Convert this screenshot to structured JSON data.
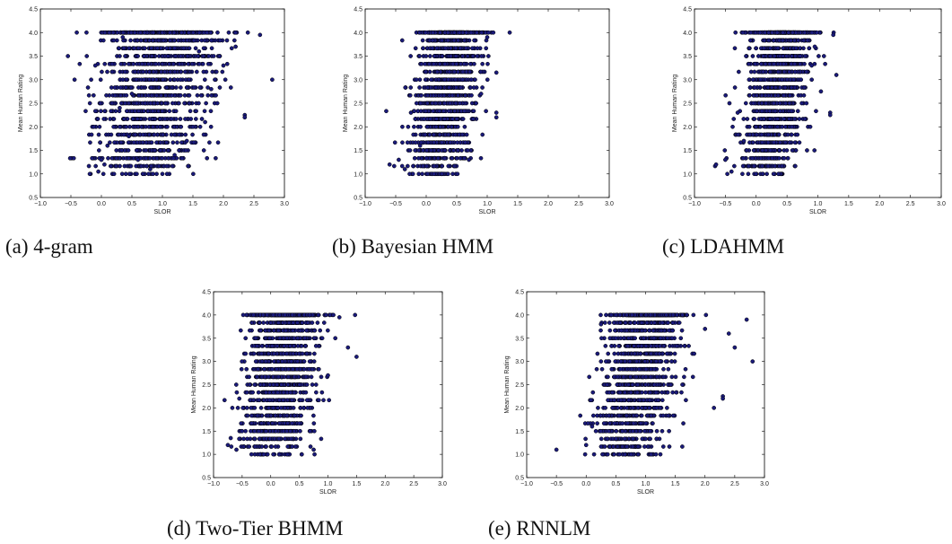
{
  "figure": {
    "panels": [
      {
        "id": "a",
        "caption": "(a) 4-gram"
      },
      {
        "id": "b",
        "caption": "(b)  Bayesian HMM"
      },
      {
        "id": "c",
        "caption": "(c) LDAHMM"
      },
      {
        "id": "d",
        "caption": "(d) Two-Tier BHMM"
      },
      {
        "id": "e",
        "caption": "(e) RNNLM"
      }
    ]
  },
  "chart_data": [
    {
      "type": "scatter",
      "id": "a",
      "xlabel": "SLOR",
      "ylabel": "Mean Human Rating",
      "xlim": [
        -1.0,
        3.0
      ],
      "ylim": [
        0.5,
        4.5
      ],
      "xticks": [
        "−1.0",
        "−0.5",
        "0.0",
        "0.5",
        "1.0",
        "1.5",
        "2.0",
        "2.5",
        "3.0"
      ],
      "yticks": [
        "0.5",
        "1.0",
        "1.5",
        "2.0",
        "2.5",
        "3.0",
        "3.5",
        "4.0",
        "4.5"
      ],
      "marker_color": "#1a1a7a",
      "x": [
        2.8,
        2.6,
        2.35,
        2.35,
        2.2,
        2.0,
        1.9,
        1.8,
        1.7,
        1.6,
        2.2,
        2.4,
        -0.05,
        0.0,
        0.05,
        0.1,
        0.2,
        -0.1,
        0.3,
        0.45,
        0.6,
        0.8,
        1.0,
        1.2,
        1.4,
        1.5,
        0.9,
        0.7,
        0.5,
        0.35
      ],
      "y": [
        3.0,
        3.95,
        2.25,
        2.2,
        3.7,
        3.3,
        2.5,
        2.8,
        2.1,
        3.6,
        4.0,
        4.0,
        1.05,
        1.3,
        1.2,
        1.6,
        2.0,
        3.3,
        2.4,
        1.8,
        1.3,
        1.1,
        1.0,
        1.4,
        1.7,
        2.0,
        3.0,
        3.5,
        2.7,
        3.9
      ],
      "density": {
        "x_mean": 0.85,
        "x_sd": 0.45,
        "x_slope": 0.12,
        "y_min": 1.0,
        "y_max": 4.0,
        "n": 1500
      }
    },
    {
      "type": "scatter",
      "id": "b",
      "xlabel": "SLOR",
      "ylabel": "Mean Human Rating",
      "xlim": [
        -1.0,
        3.0
      ],
      "ylim": [
        0.5,
        4.5
      ],
      "xticks": [
        "−1.0",
        "−0.5",
        "0.0",
        "0.5",
        "1.0",
        "1.5",
        "2.0",
        "2.5",
        "3.0"
      ],
      "yticks": [
        "0.5",
        "1.0",
        "1.5",
        "2.0",
        "2.5",
        "3.0",
        "3.5",
        "4.0",
        "4.5"
      ],
      "marker_color": "#1a1a7a",
      "x": [
        -0.6,
        -0.45,
        -0.35,
        -0.25,
        1.15,
        1.15,
        1.15,
        1.0,
        0.9,
        1.1,
        -0.2,
        -0.1,
        0.7
      ],
      "y": [
        1.2,
        1.3,
        1.1,
        2.3,
        2.3,
        2.2,
        3.15,
        3.9,
        2.7,
        4.0,
        2.0,
        1.6,
        1.3
      ],
      "density": {
        "x_mean": 0.3,
        "x_sd": 0.24,
        "x_slope": 0.1,
        "y_min": 1.0,
        "y_max": 4.0,
        "n": 1500
      }
    },
    {
      "type": "scatter",
      "id": "c",
      "xlabel": "SLOR",
      "ylabel": "Mean Human Rating",
      "xlim": [
        -1.0,
        3.0
      ],
      "ylim": [
        0.5,
        4.5
      ],
      "xticks": [
        "−1.0",
        "−0.5",
        "0.0",
        "0.5",
        "1.0",
        "1.5",
        "2.0",
        "2.5",
        "3.0"
      ],
      "yticks": [
        "0.5",
        "1.0",
        "1.5",
        "2.0",
        "2.5",
        "3.0",
        "3.5",
        "4.0",
        "4.5"
      ],
      "marker_color": "#1a1a7a",
      "x": [
        -0.65,
        -0.5,
        -0.4,
        -0.3,
        1.2,
        1.2,
        1.3,
        1.05,
        0.9,
        1.25,
        -0.2,
        0.95
      ],
      "y": [
        1.2,
        1.3,
        1.05,
        2.3,
        2.3,
        2.25,
        3.1,
        2.75,
        3.3,
        3.95,
        1.7,
        3.7
      ],
      "density": {
        "x_mean": 0.3,
        "x_sd": 0.24,
        "x_slope": 0.1,
        "y_min": 1.0,
        "y_max": 4.0,
        "n": 1500
      }
    },
    {
      "type": "scatter",
      "id": "d",
      "xlabel": "SLOR",
      "ylabel": "Mean Human Rating",
      "xlim": [
        -1.0,
        3.0
      ],
      "ylim": [
        0.5,
        4.5
      ],
      "xticks": [
        "−1.0",
        "−0.5",
        "0.0",
        "0.5",
        "1.0",
        "1.5",
        "2.0",
        "2.5",
        "3.0"
      ],
      "yticks": [
        "0.5",
        "1.0",
        "1.5",
        "2.0",
        "2.5",
        "3.0",
        "3.5",
        "4.0",
        "4.5"
      ],
      "marker_color": "#1a1a7a",
      "x": [
        -0.75,
        -0.7,
        -0.6,
        -0.55,
        -0.5,
        1.5,
        1.35,
        1.2,
        1.0,
        0.9,
        -0.3,
        0.75
      ],
      "y": [
        1.2,
        1.35,
        1.1,
        2.2,
        1.5,
        3.1,
        3.3,
        3.95,
        2.7,
        3.5,
        4.0,
        1.1
      ],
      "density": {
        "x_mean": 0.15,
        "x_sd": 0.3,
        "x_slope": 0.1,
        "y_min": 1.0,
        "y_max": 4.0,
        "n": 1500
      }
    },
    {
      "type": "scatter",
      "id": "e",
      "xlabel": "SLOR",
      "ylabel": "Mean Human Rating",
      "xlim": [
        -1.0,
        3.0
      ],
      "ylim": [
        0.5,
        4.5
      ],
      "xticks": [
        "−1.0",
        "−0.5",
        "0.0",
        "0.5",
        "1.0",
        "1.5",
        "2.0",
        "2.5",
        "3.0"
      ],
      "yticks": [
        "0.5",
        "1.0",
        "1.5",
        "2.0",
        "2.5",
        "3.0",
        "3.5",
        "4.0",
        "4.5"
      ],
      "marker_color": "#1a1a7a",
      "x": [
        -0.5,
        0.0,
        0.1,
        2.8,
        2.7,
        2.5,
        2.3,
        2.3,
        2.15,
        2.0,
        2.4,
        0.25
      ],
      "y": [
        1.1,
        1.2,
        1.6,
        3.0,
        3.9,
        3.3,
        2.25,
        2.2,
        2.0,
        3.7,
        3.6,
        3.8
      ],
      "density": {
        "x_mean": 0.85,
        "x_sd": 0.3,
        "x_slope": 0.15,
        "y_min": 1.0,
        "y_max": 4.0,
        "n": 1500
      }
    }
  ]
}
